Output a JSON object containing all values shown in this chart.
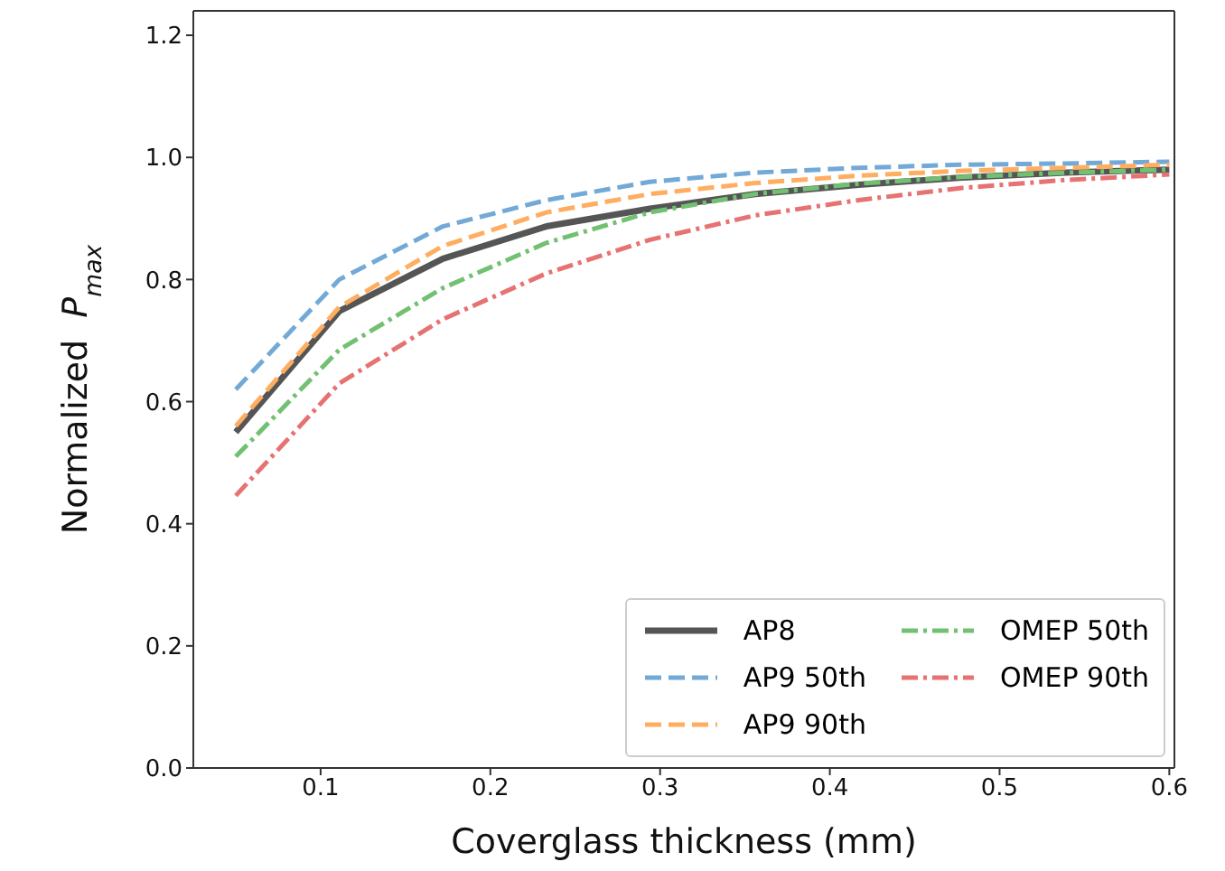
{
  "chart_data": {
    "type": "line",
    "xlabel": "Coverglass thickness (mm)",
    "ylabel": "Normalized  P$_{max}$",
    "x": [
      0.05,
      0.111,
      0.172,
      0.233,
      0.294,
      0.356,
      0.417,
      0.478,
      0.539,
      0.6
    ],
    "series": [
      {
        "name": "AP8",
        "color": "#555555",
        "line_style": "solid",
        "values": [
          0.55,
          0.748,
          0.834,
          0.887,
          0.916,
          0.94,
          0.955,
          0.967,
          0.975,
          0.98
        ]
      },
      {
        "name": "AP9 50th",
        "color": "#72a9d6",
        "line_style": "dashed",
        "values": [
          0.62,
          0.8,
          0.887,
          0.93,
          0.96,
          0.975,
          0.983,
          0.988,
          0.99,
          0.993
        ]
      },
      {
        "name": "AP9 90th",
        "color": "#ffad60",
        "line_style": "dashed",
        "values": [
          0.56,
          0.755,
          0.855,
          0.91,
          0.94,
          0.958,
          0.97,
          0.978,
          0.983,
          0.988
        ]
      },
      {
        "name": "OMEP 50th",
        "color": "#72c072",
        "line_style": "dashdot",
        "values": [
          0.51,
          0.685,
          0.786,
          0.86,
          0.91,
          0.94,
          0.957,
          0.968,
          0.975,
          0.98
        ]
      },
      {
        "name": "OMEP 90th",
        "color": "#e67272",
        "line_style": "dashdot",
        "values": [
          0.446,
          0.63,
          0.735,
          0.81,
          0.865,
          0.905,
          0.93,
          0.95,
          0.963,
          0.972
        ]
      }
    ],
    "xlim": [
      0.025,
      0.603
    ],
    "xticks": [
      0.1,
      0.2,
      0.3,
      0.4,
      0.5,
      0.6
    ],
    "ylim": [
      0,
      1.24
    ],
    "yticks": [
      {
        "value": 0,
        "label": "0.0"
      },
      {
        "value": 0.2,
        "label": "0.2"
      },
      {
        "value": 0.4,
        "label": "0.4"
      },
      {
        "value": 0.6,
        "label": "0.6"
      },
      {
        "value": 0.8,
        "label": "0.8"
      },
      {
        "value": 1,
        "label": "1.0"
      },
      {
        "value": 1.2,
        "label": "1.2"
      }
    ],
    "grid": false,
    "legend": "bottom right",
    "marker": "none"
  }
}
